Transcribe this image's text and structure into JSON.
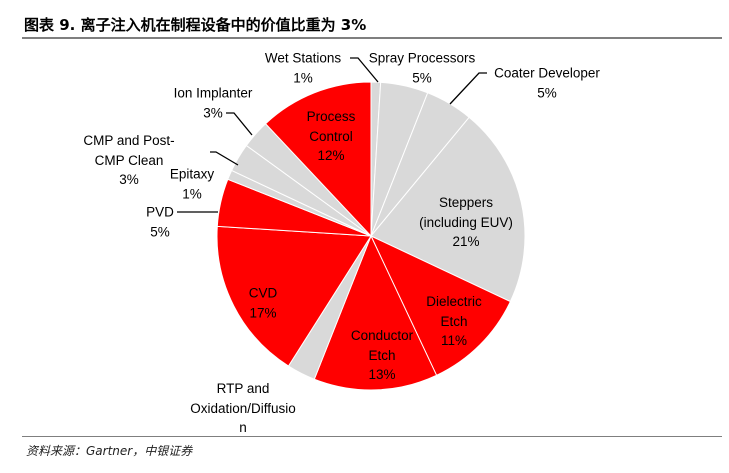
{
  "title": "图表 9. 离子注入机在制程设备中的价值比重为 3%",
  "source": "资料来源：Gartner，中银证券",
  "chart_data": {
    "type": "pie",
    "start": "12 o'clock",
    "direction": "clockwise",
    "colors": {
      "highlight": "#ff0000",
      "other": "#d9d9d9",
      "border": "#ffffff"
    },
    "slices": [
      {
        "name": "Wet Stations",
        "label": "1%",
        "value": 1,
        "highlight": false
      },
      {
        "name": "Spray Processors",
        "label": "5%",
        "value": 5,
        "highlight": false
      },
      {
        "name": "Coater Developer",
        "label": "5%",
        "value": 5,
        "highlight": false
      },
      {
        "name": "Steppers (including EUV)",
        "label": "21%",
        "value": 21,
        "highlight": false
      },
      {
        "name": "Dielectric Etch",
        "label": "11%",
        "value": 11,
        "highlight": true
      },
      {
        "name": "Conductor Etch",
        "label": "13%",
        "value": 13,
        "highlight": true
      },
      {
        "name": "RTP and Oxidation/Diffusion",
        "label": "",
        "value": 3,
        "highlight": false
      },
      {
        "name": "CVD",
        "label": "17%",
        "value": 17,
        "highlight": true
      },
      {
        "name": "PVD",
        "label": "5%",
        "value": 5,
        "highlight": true
      },
      {
        "name": "Epitaxy",
        "label": "1%",
        "value": 1,
        "highlight": false
      },
      {
        "name": "CMP and Post-CMP Clean",
        "label": "3%",
        "value": 3,
        "highlight": false
      },
      {
        "name": "Ion Implanter",
        "label": "3%",
        "value": 3,
        "highlight": false
      },
      {
        "name": "Process Control",
        "label": "12%",
        "value": 12,
        "highlight": true
      }
    ]
  }
}
